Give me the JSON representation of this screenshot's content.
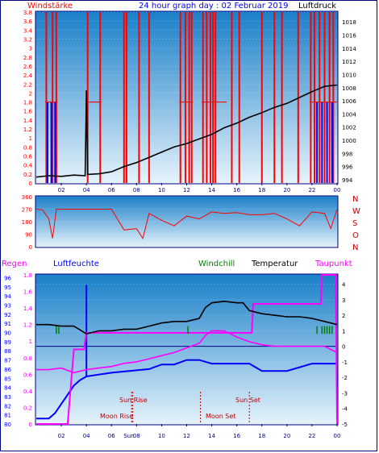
{
  "title": "24 hour graph day : 02 Februar 2019",
  "colors": {
    "blue_label": "#0000ff",
    "red": "#ff0000",
    "dark_red": "#c00000",
    "green": "#008000",
    "magenta": "#ff00ff",
    "navy": "#000080",
    "black": "#000000",
    "panel_top": "#1a7fc8",
    "panel_bottom": "#e6f3fb"
  },
  "chart_data": [
    {
      "type": "line",
      "name": "wind-pressure",
      "left_label": "Windstärke",
      "right_label": "Luftdruck",
      "x_ticks": [
        "02",
        "04",
        "06",
        "08",
        "10",
        "12",
        "14",
        "16",
        "18",
        "20",
        "22",
        "00"
      ],
      "y_left_ticks": [
        "0",
        "0.2",
        "0.4",
        "0.6",
        "0.8",
        "1",
        "1.2",
        "1.4",
        "1.6",
        "1.8",
        "2",
        "2.2",
        "2.4",
        "2.6",
        "2.8",
        "3",
        "3.2",
        "3.4",
        "3.6",
        "3.8"
      ],
      "y_right_ticks": [
        "994",
        "996",
        "998",
        "1000",
        "1002",
        "1004",
        "1006",
        "1008",
        "1010",
        "1012",
        "1014",
        "1016",
        "1018"
      ],
      "ylim_left": [
        0,
        3.8
      ],
      "ylim_right": [
        993.5,
        1019.5
      ],
      "pressure_x": [
        0,
        1,
        2,
        3,
        3.9,
        4,
        4.1,
        5,
        6,
        7,
        8,
        9,
        10,
        11,
        12,
        13,
        14,
        15,
        16,
        17,
        18,
        19,
        20,
        21,
        22,
        23,
        24
      ],
      "pressure_y": [
        994.4,
        994.6,
        994.5,
        994.7,
        994.6,
        1007.6,
        994.8,
        994.9,
        995.2,
        996.0,
        996.6,
        997.4,
        998.2,
        999.0,
        999.5,
        1000.2,
        1000.9,
        1001.9,
        1002.6,
        1003.5,
        1004.2,
        1005.0,
        1005.6,
        1006.5,
        1007.4,
        1008.2,
        1008.4
      ],
      "wind_red_bars": [
        0.8,
        1.3,
        1.6,
        4.1,
        5.1,
        7.0,
        7.2,
        8.2,
        9.0,
        11.5,
        11.9,
        12.2,
        12.4,
        13.3,
        13.6,
        13.9,
        14.1,
        14.3,
        15.6,
        16.2,
        18.0,
        19.0,
        19.6,
        20.9,
        21.9,
        22.2,
        22.6,
        23.0,
        23.4,
        23.7
      ],
      "wind_blue_bars": [
        0.9,
        1.2,
        1.5,
        22.4,
        22.8,
        23.2,
        23.6
      ]
    },
    {
      "type": "line",
      "name": "wind-direction",
      "y_ticks": [
        "360",
        "270",
        "180",
        "90",
        "0"
      ],
      "compass": [
        "N",
        "W",
        "S",
        "O",
        "N"
      ],
      "ylim": [
        0,
        360
      ],
      "x": [
        0,
        0.5,
        1,
        1.3,
        1.6,
        2,
        3,
        4,
        5,
        6,
        7,
        8,
        8.5,
        9,
        10,
        11,
        12,
        13,
        14,
        15,
        16,
        17,
        18,
        19,
        20,
        21,
        22,
        23,
        23.5,
        24
      ],
      "y": [
        270,
        265,
        200,
        60,
        270,
        270,
        270,
        270,
        270,
        270,
        120,
        130,
        60,
        240,
        190,
        150,
        220,
        200,
        250,
        240,
        245,
        230,
        230,
        240,
        200,
        150,
        250,
        240,
        130,
        270
      ]
    },
    {
      "type": "line",
      "name": "temperature-humidity",
      "left_label": "Regen",
      "humidity_label": "Luftfeuchte",
      "windchill_label": "Windchill",
      "temperature_label": "Temperatur",
      "dewpoint_label": "Taupunkt",
      "x_ticks": [
        "02",
        "04",
        "06",
        "08",
        "10",
        "12",
        "14",
        "16",
        "18",
        "20",
        "22",
        "00"
      ],
      "rain_ticks": [
        "0",
        "0.2",
        "0.4",
        "0.6",
        "0.8",
        "1",
        "1.2",
        "1.4",
        "1.6",
        "1.8"
      ],
      "humidity_ticks": [
        "80",
        "81",
        "82",
        "83",
        "84",
        "85",
        "86",
        "87",
        "88",
        "89",
        "90",
        "91",
        "92",
        "93",
        "94",
        "95",
        "96"
      ],
      "temp_ticks": [
        "-5",
        "-4",
        "-3",
        "-2",
        "-1",
        "0",
        "1",
        "2",
        "3",
        "4"
      ],
      "ylim_rain": [
        0,
        1.8
      ],
      "ylim_humidity": [
        80,
        96.3
      ],
      "ylim_temp": [
        -5,
        4.6
      ],
      "annotations": [
        "Sun Rise",
        "Sun Set",
        "Moon Rise",
        "Moon Set",
        "Sun"
      ],
      "temperature_x": [
        0,
        1,
        2,
        3,
        4,
        5,
        6,
        7,
        8,
        9,
        10,
        11,
        12,
        13,
        13.5,
        14,
        15,
        16,
        16.5,
        17,
        18,
        19,
        20,
        21,
        22,
        23,
        24
      ],
      "temperature_y": [
        1.4,
        1.4,
        1.3,
        1.3,
        0.8,
        1.0,
        1.0,
        1.1,
        1.1,
        1.3,
        1.5,
        1.6,
        1.6,
        1.8,
        2.5,
        2.8,
        2.9,
        2.8,
        2.8,
        2.3,
        2.1,
        2.0,
        1.9,
        1.9,
        1.8,
        1.6,
        1.4
      ],
      "dewpoint_x": [
        0,
        1,
        2,
        3,
        4,
        5,
        6,
        7,
        8,
        9,
        10,
        11,
        12,
        13,
        13.5,
        14,
        15,
        16,
        17,
        18,
        19,
        20,
        21,
        22,
        23,
        24
      ],
      "dewpoint_y": [
        -1.5,
        -1.5,
        -1.4,
        -1.7,
        -1.5,
        -1.4,
        -1.3,
        -1.1,
        -1.0,
        -0.8,
        -0.6,
        -0.4,
        -0.1,
        0.2,
        0.7,
        1.0,
        1.0,
        0.6,
        0.3,
        0.1,
        0.0,
        0.0,
        0.0,
        0.0,
        0.0,
        -0.4
      ],
      "humidity_x": [
        0,
        1,
        1.5,
        2,
        2.5,
        3,
        3.5,
        4,
        6,
        9,
        10,
        11,
        12,
        13,
        14,
        17,
        18,
        20,
        22,
        24
      ],
      "humidity_y": [
        80.6,
        80.6,
        81.2,
        82.2,
        83.2,
        84.2,
        84.8,
        85.2,
        85.6,
        86,
        86.5,
        86.5,
        87,
        87,
        86.6,
        86.6,
        85.8,
        85.8,
        86.6,
        86.6
      ],
      "rain_x": [
        0,
        2.5,
        3,
        3.8,
        4,
        17.2,
        17.3,
        22.7,
        22.8,
        23.9,
        24
      ],
      "rain_y": [
        0,
        0,
        0.9,
        0.9,
        1.1,
        1.1,
        1.45,
        1.45,
        1.8,
        1.8,
        0
      ]
    }
  ]
}
